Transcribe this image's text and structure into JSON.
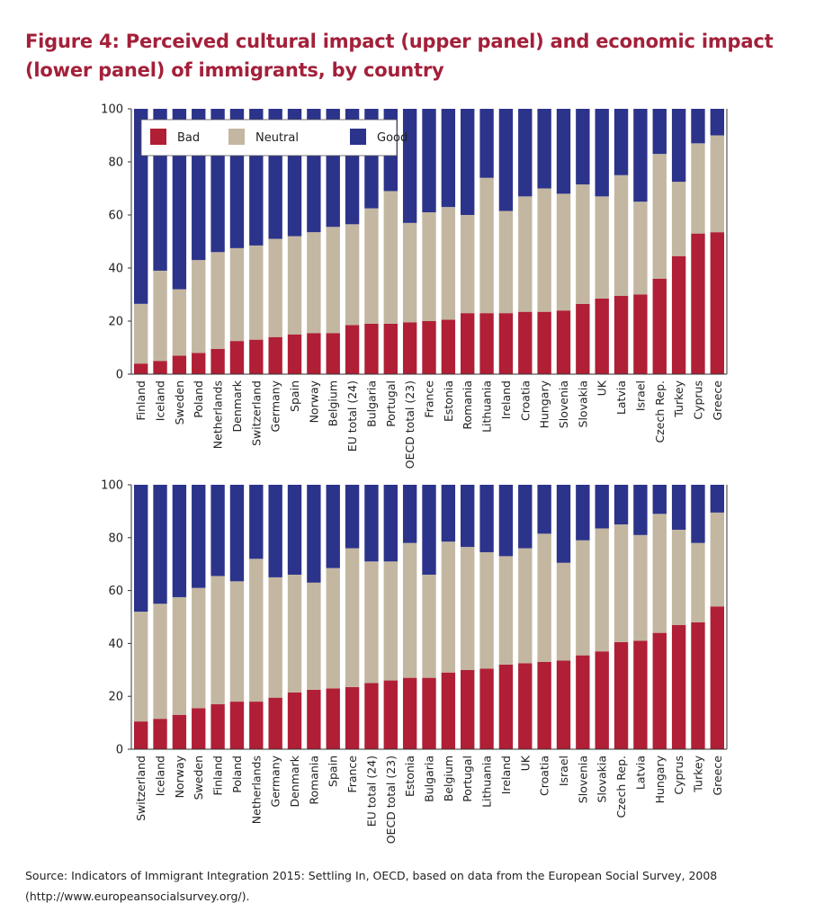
{
  "title": "Figure 4: Perceived cultural impact (upper panel) and economic impact (lower panel) of immigrants, by country",
  "source": "Source: Indicators of Immigrant Integration 2015: Settling In, OECD, based on data from the European Social Survey, 2008 (http://www.europeansocialsurvey.org/).",
  "colors": {
    "Bad": "#b01f35",
    "Neutral": "#c3b7a1",
    "Good": "#2c338a"
  },
  "chart_data": [
    {
      "type": "bar",
      "stacked": true,
      "panel": "upper",
      "ylim": [
        0,
        100
      ],
      "yticks": [
        0,
        20,
        40,
        60,
        80,
        100
      ],
      "legend": [
        "Bad",
        "Neutral",
        "Good"
      ],
      "legend_position": "top-left",
      "categories": [
        "Finland",
        "Iceland",
        "Sweden",
        "Poland",
        "Netherlands",
        "Denmark",
        "Switzerland",
        "Germany",
        "Spain",
        "Norway",
        "Belgium",
        "EU total (24)",
        "Bulgaria",
        "Portugal",
        "OECD total (23)",
        "France",
        "Estonia",
        "Romania",
        "Lithuania",
        "Ireland",
        "Croatia",
        "Hungary",
        "Slovenia",
        "Slovakia",
        "UK",
        "Latvia",
        "Israel",
        "Czech Rep.",
        "Turkey",
        "Cyprus",
        "Greece"
      ],
      "series": [
        {
          "name": "Bad",
          "values": [
            4,
            5,
            7,
            8,
            9.5,
            12.5,
            13,
            14,
            15,
            15.5,
            15.5,
            18.5,
            19,
            19,
            19.5,
            20,
            20.5,
            23,
            23,
            23,
            23.5,
            23.5,
            24,
            26.5,
            28.5,
            29.5,
            30,
            36,
            44.5,
            53,
            53.5
          ]
        },
        {
          "name": "Neutral",
          "values": [
            22.5,
            34,
            25,
            35,
            36.5,
            35,
            35.5,
            37,
            37,
            38,
            40,
            38,
            43.5,
            50,
            37.5,
            41,
            42.5,
            37,
            51,
            38.5,
            43.5,
            46.5,
            44,
            45,
            38.5,
            45.5,
            35,
            47,
            28,
            34,
            36.5
          ]
        },
        {
          "name": "Good",
          "values": [
            73.5,
            61,
            68,
            57,
            54,
            52.5,
            51.5,
            49,
            48,
            46.5,
            44.5,
            43.5,
            37.5,
            31,
            43,
            39,
            37,
            40,
            26,
            38.5,
            33,
            30,
            32,
            28.5,
            33,
            25,
            35,
            17,
            27.5,
            13,
            10
          ]
        }
      ]
    },
    {
      "type": "bar",
      "stacked": true,
      "panel": "lower",
      "ylim": [
        0,
        100
      ],
      "yticks": [
        0,
        20,
        40,
        60,
        80,
        100
      ],
      "categories": [
        "Switzerland",
        "Iceland",
        "Norway",
        "Sweden",
        "Finland",
        "Poland",
        "Netherlands",
        "Germany",
        "Denmark",
        "Romania",
        "Spain",
        "France",
        "EU total (24)",
        "OECD total (23)",
        "Estonia",
        "Bulgaria",
        "Belgium",
        "Portugal",
        "Lithuania",
        "Ireland",
        "UK",
        "Croatia",
        "Israel",
        "Slovenia",
        "Slovakia",
        "Czech Rep.",
        "Latvia",
        "Hungary",
        "Cyprus",
        "Turkey",
        "Greece"
      ],
      "series": [
        {
          "name": "Bad",
          "values": [
            10.5,
            11.5,
            13,
            15.5,
            17,
            18,
            18,
            19.5,
            21.5,
            22.5,
            23,
            23.5,
            25,
            26,
            27,
            27,
            29,
            30,
            30.5,
            32,
            32.5,
            33,
            33.5,
            35.5,
            37,
            40.5,
            41,
            44,
            47,
            48,
            54
          ]
        },
        {
          "name": "Neutral",
          "values": [
            41.5,
            43.5,
            44.5,
            45.5,
            48.5,
            45.5,
            54,
            45.5,
            44.5,
            40.5,
            45.5,
            52.5,
            46,
            45,
            51,
            39,
            49.5,
            46.5,
            44,
            41,
            43.5,
            48.5,
            37,
            43.5,
            46.5,
            44.5,
            40,
            45,
            36,
            30,
            35.5
          ]
        },
        {
          "name": "Good",
          "values": [
            48,
            45,
            42.5,
            39,
            34.5,
            36.5,
            28,
            35,
            34,
            37,
            31.5,
            24,
            29,
            29,
            22,
            34,
            21.5,
            23.5,
            25.5,
            27,
            24,
            18.5,
            29.5,
            21,
            16.5,
            15,
            19,
            11,
            17,
            22,
            10.5
          ]
        }
      ]
    }
  ]
}
